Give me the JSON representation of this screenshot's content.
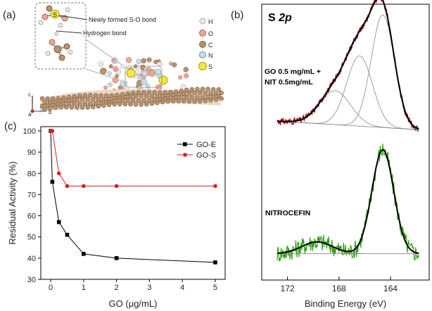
{
  "panels": {
    "a": {
      "label": "(a)",
      "callouts": {
        "bond1": "Newly formed S-O bond",
        "bond2": "Hydrogen bond",
        "sulfur_mark": "S"
      },
      "legend": [
        {
          "symbol": "H",
          "color": "#f0e6e6"
        },
        {
          "symbol": "O",
          "color": "#e8a89a"
        },
        {
          "symbol": "C",
          "color": "#b8926e"
        },
        {
          "symbol": "N",
          "color": "#c7dde8"
        },
        {
          "symbol": "S",
          "color": "#f2e64a"
        }
      ],
      "axes": {
        "c": "c",
        "a": "a",
        "b": "b"
      }
    },
    "b": {
      "label": "(b)",
      "title_main": "S ",
      "title_italic": "2p",
      "upper_label_line1": "GO 0.5 mg/mL +",
      "upper_label_line2": "NIT 0.5mg/mL",
      "lower_label": "NITROCEFIN",
      "xlabel": "Binding Energy (eV)"
    },
    "c": {
      "label": "(c)"
    }
  },
  "chart_data": [
    {
      "type": "line",
      "panel": "c",
      "xlabel": "GO (μg/mL)",
      "ylabel": "Residual Activity (%)",
      "xlim": [
        -0.3,
        5.3
      ],
      "ylim": [
        30,
        102
      ],
      "xticks": [
        0,
        1,
        2,
        3,
        4,
        5
      ],
      "yticks": [
        30,
        40,
        50,
        60,
        70,
        80,
        90,
        100
      ],
      "legend_position": "top-right",
      "series": [
        {
          "name": "GO-E",
          "color": "#000000",
          "marker": "square",
          "x": [
            0,
            0.05,
            0.25,
            0.5,
            1,
            2,
            5
          ],
          "y": [
            100,
            76,
            57,
            51,
            42,
            40,
            38
          ]
        },
        {
          "name": "GO-S",
          "color": "#d62020",
          "marker": "circle",
          "x": [
            0,
            0.05,
            0.25,
            0.5,
            1,
            2,
            5
          ],
          "y": [
            100,
            100,
            80,
            74,
            74,
            74,
            74
          ]
        }
      ]
    },
    {
      "type": "line",
      "panel": "b",
      "title": "S 2p",
      "xlabel": "Binding Energy (eV)",
      "xlim": [
        174,
        161
      ],
      "xreversed": true,
      "xticks": [
        172,
        168,
        164
      ],
      "spectra": [
        {
          "name": "GO 0.5 mg/mL + NIT 0.5mg/mL",
          "raw_color": "#a01818",
          "baseline_start": 0.08,
          "baseline_end": 0.01,
          "components": [
            {
              "center": 168.3,
              "amplitude": 0.28,
              "width": 1.2
            },
            {
              "center": 166.4,
              "amplitude": 0.58,
              "width": 1.0
            },
            {
              "center": 164.6,
              "amplitude": 0.93,
              "width": 0.9
            }
          ]
        },
        {
          "name": "NITROCEFIN",
          "raw_color": "#2c9a10",
          "baseline_start": 0.02,
          "baseline_end": 0.02,
          "components": [
            {
              "center": 169.7,
              "amplitude": 0.1,
              "width": 1.2
            },
            {
              "center": 164.6,
              "amplitude": 0.88,
              "width": 0.85
            }
          ]
        }
      ]
    }
  ]
}
